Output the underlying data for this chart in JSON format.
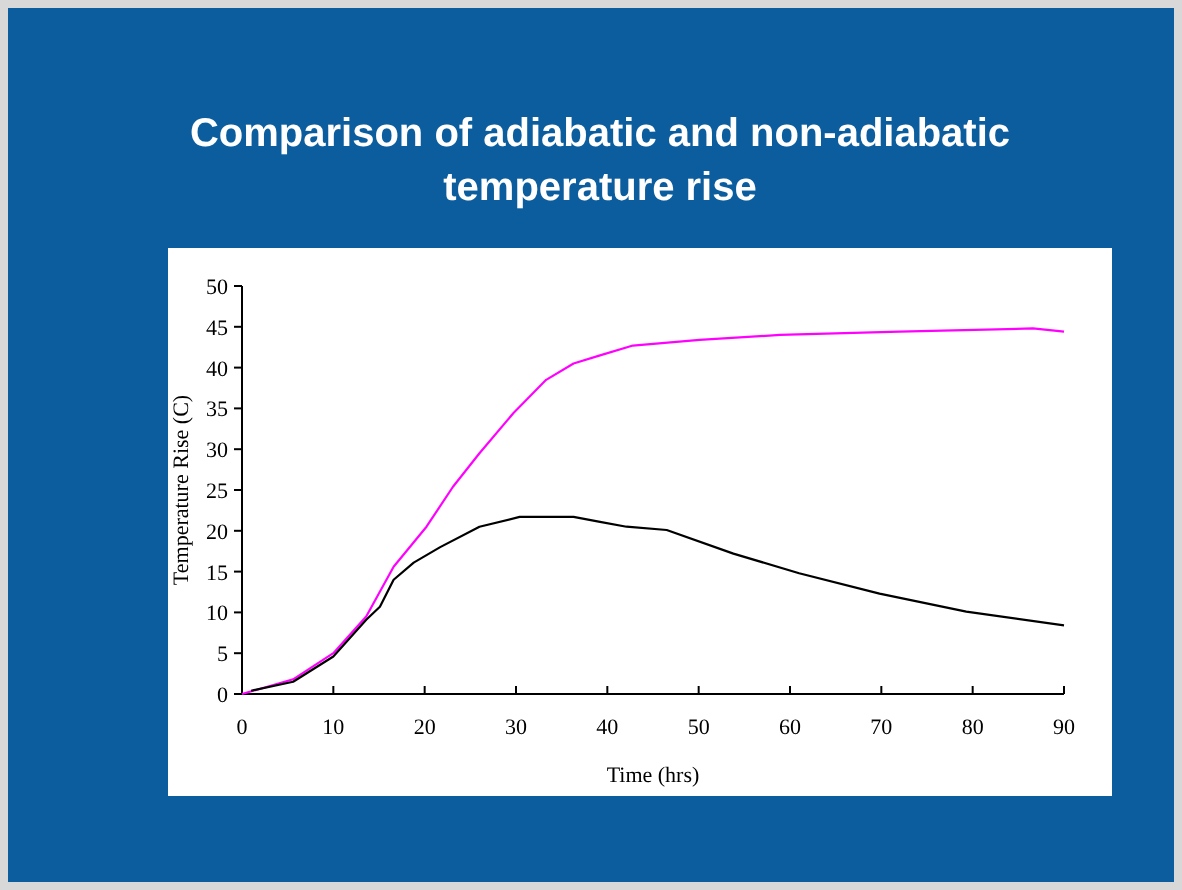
{
  "chart_data": {
    "type": "line",
    "title": "Comparison of adiabatic and non-adiabatic temperature rise",
    "xlabel": "Time (hrs)",
    "ylabel": "Temperature Rise (C)",
    "xlim": [
      0,
      90
    ],
    "ylim": [
      0,
      50
    ],
    "xticks": [
      0,
      10,
      20,
      30,
      40,
      50,
      60,
      70,
      80,
      90
    ],
    "yticks": [
      0,
      5,
      10,
      15,
      20,
      25,
      30,
      35,
      40,
      45,
      50
    ],
    "grid": false,
    "marker": "none",
    "line_style": "solid",
    "series": [
      {
        "color": "#ff00ff",
        "x": [
          0,
          5.6,
          10,
          13.6,
          16.6,
          20.2,
          23.1,
          26,
          29.7,
          33.3,
          36.3,
          39.2,
          42.8,
          50.1,
          58.9,
          72,
          86.6,
          90
        ],
        "values": [
          0,
          1.8,
          5,
          9.5,
          15.6,
          20.5,
          25.4,
          29.5,
          34.4,
          38.5,
          40.5,
          41.5,
          42.7,
          43.4,
          44,
          44.4,
          44.8,
          44.4
        ]
      },
      {
        "color": "#000000",
        "x": [
          1,
          5.6,
          10,
          13.6,
          15.1,
          16.6,
          18.8,
          21.7,
          26,
          30.4,
          36.3,
          39.2,
          42.1,
          46.5,
          53.8,
          61,
          69.8,
          79.3,
          90
        ],
        "values": [
          0.4,
          1.5,
          4.6,
          9.1,
          10.7,
          14,
          16.1,
          18,
          20.5,
          21.7,
          21.7,
          21.1,
          20.5,
          20.1,
          17.2,
          14.8,
          12.3,
          10.1,
          8.4
        ]
      }
    ]
  }
}
